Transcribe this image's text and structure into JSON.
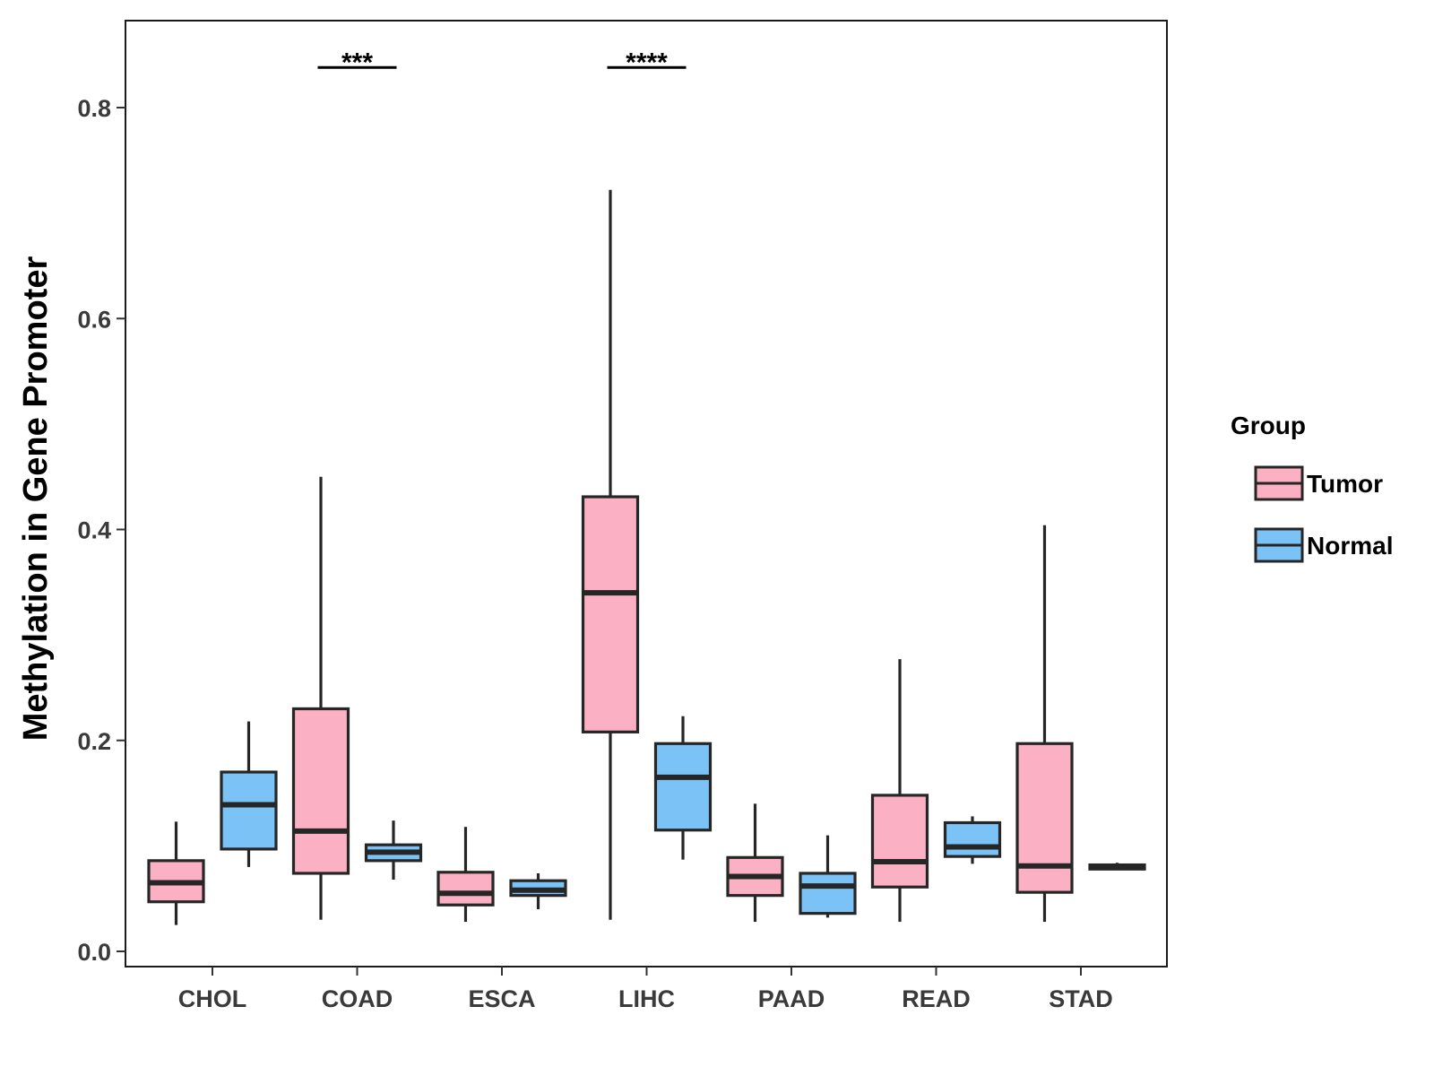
{
  "chart_data": {
    "type": "box",
    "title": "",
    "xlabel": "",
    "ylabel": "Methylation in Gene Promoter",
    "ylim": [
      -0.015,
      0.88
    ],
    "yticks": [
      0.0,
      0.2,
      0.4,
      0.6,
      0.8
    ],
    "ytick_labels": [
      "0.0",
      "0.2",
      "0.4",
      "0.6",
      "0.8"
    ],
    "categories": [
      "CHOL",
      "COAD",
      "ESCA",
      "LIHC",
      "PAAD",
      "READ",
      "STAD"
    ],
    "grid": false,
    "legend": {
      "title": "Group",
      "position": "right",
      "entries": [
        "Tumor",
        "Normal"
      ]
    },
    "series": [
      {
        "name": "Tumor",
        "color": "#FBB1C3",
        "boxes": [
          {
            "min": 0.025,
            "q1": 0.047,
            "median": 0.065,
            "q3": 0.086,
            "max": 0.123
          },
          {
            "min": 0.03,
            "q1": 0.074,
            "median": 0.114,
            "q3": 0.23,
            "max": 0.45
          },
          {
            "min": 0.028,
            "q1": 0.044,
            "median": 0.055,
            "q3": 0.075,
            "max": 0.118
          },
          {
            "min": 0.03,
            "q1": 0.208,
            "median": 0.34,
            "q3": 0.431,
            "max": 0.722
          },
          {
            "min": 0.028,
            "q1": 0.053,
            "median": 0.071,
            "q3": 0.089,
            "max": 0.14
          },
          {
            "min": 0.028,
            "q1": 0.061,
            "median": 0.085,
            "q3": 0.148,
            "max": 0.277
          },
          {
            "min": 0.028,
            "q1": 0.056,
            "median": 0.081,
            "q3": 0.197,
            "max": 0.404
          }
        ]
      },
      {
        "name": "Normal",
        "color": "#7BC3F7",
        "boxes": [
          {
            "min": 0.08,
            "q1": 0.097,
            "median": 0.139,
            "q3": 0.17,
            "max": 0.218
          },
          {
            "min": 0.068,
            "q1": 0.086,
            "median": 0.094,
            "q3": 0.101,
            "max": 0.124
          },
          {
            "min": 0.04,
            "q1": 0.053,
            "median": 0.058,
            "q3": 0.067,
            "max": 0.074
          },
          {
            "min": 0.087,
            "q1": 0.115,
            "median": 0.165,
            "q3": 0.197,
            "max": 0.223
          },
          {
            "min": 0.032,
            "q1": 0.036,
            "median": 0.062,
            "q3": 0.074,
            "max": 0.11
          },
          {
            "min": 0.083,
            "q1": 0.09,
            "median": 0.099,
            "q3": 0.122,
            "max": 0.128
          },
          {
            "min": 0.077,
            "q1": 0.078,
            "median": 0.08,
            "q3": 0.082,
            "max": 0.084
          }
        ]
      }
    ],
    "annotations": [
      {
        "category": "COAD",
        "label": "***",
        "y": 0.838
      },
      {
        "category": "LIHC",
        "label": "****",
        "y": 0.838
      }
    ]
  }
}
